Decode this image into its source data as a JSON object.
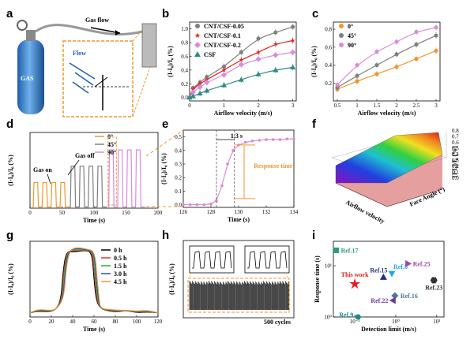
{
  "panel_labels": [
    "a",
    "b",
    "c",
    "d",
    "e",
    "f",
    "g",
    "h",
    "i"
  ],
  "panel_a": {
    "gas_flow": "Gas flow",
    "flow": "Flow",
    "tank": "GAS"
  },
  "chart_data": [
    {
      "id": "b",
      "type": "line",
      "xlabel": "Airflow velocity (m/s)",
      "ylabel": "(I-I₀)/I₀ (%)",
      "xlim": [
        0,
        3.1
      ],
      "ylim": [
        -0.05,
        1.1
      ],
      "xticks": [
        0,
        1,
        2,
        3
      ],
      "yticks": [
        0.0,
        0.2,
        0.4,
        0.6,
        0.8,
        1.0
      ],
      "x": [
        0,
        0.1,
        0.3,
        0.5,
        1.0,
        1.5,
        2.0,
        2.5,
        3.0
      ],
      "series": [
        {
          "name": "CNT/CSF-0.05",
          "color": "#7f7f7f",
          "marker": "circle",
          "values": [
            0,
            0.14,
            0.22,
            0.3,
            0.45,
            0.66,
            0.86,
            0.95,
            1.03
          ]
        },
        {
          "name": "CNT/CSF-0.1",
          "color": "#e02020",
          "marker": "star",
          "values": [
            0,
            0.12,
            0.2,
            0.26,
            0.4,
            0.55,
            0.66,
            0.78,
            0.83
          ]
        },
        {
          "name": "CNT/CSF-0.2",
          "color": "#d98cd9",
          "marker": "diamond",
          "values": [
            0,
            0.08,
            0.15,
            0.22,
            0.33,
            0.48,
            0.56,
            0.62,
            0.66
          ]
        },
        {
          "name": "CSF",
          "color": "#2e8b85",
          "marker": "triangle",
          "values": [
            0,
            0.02,
            0.06,
            0.1,
            0.18,
            0.26,
            0.34,
            0.4,
            0.44
          ]
        }
      ]
    },
    {
      "id": "c",
      "type": "line",
      "xlabel": "Airflow velocity (m/s)",
      "ylabel": "(I-I₀)/I₀ (%)",
      "xlim": [
        0.4,
        3.1
      ],
      "ylim": [
        0.0,
        0.88
      ],
      "xticks": [
        0.5,
        1.0,
        1.5,
        2.0,
        2.5,
        3.0
      ],
      "yticks": [
        0.2,
        0.4,
        0.6,
        0.8
      ],
      "x": [
        0.5,
        1.0,
        1.5,
        2.0,
        2.5,
        3.0
      ],
      "series": [
        {
          "name": "0°",
          "color": "#f0962e",
          "marker": "circle",
          "values": [
            0.13,
            0.22,
            0.3,
            0.38,
            0.47,
            0.56
          ]
        },
        {
          "name": "45°",
          "color": "#7f7f7f",
          "marker": "circle",
          "values": [
            0.15,
            0.28,
            0.4,
            0.52,
            0.63,
            0.73
          ]
        },
        {
          "name": "90°",
          "color": "#d98cd9",
          "marker": "circle",
          "values": [
            0.18,
            0.4,
            0.55,
            0.66,
            0.77,
            0.82
          ]
        }
      ]
    },
    {
      "id": "d",
      "type": "line",
      "xlabel": "Time (s)",
      "ylabel": "(I-I₀)/I₀ (%)",
      "xlim": [
        0,
        200
      ],
      "ylim": [
        0,
        0.65
      ],
      "xticks": [
        0,
        50,
        100,
        150,
        200
      ],
      "yticks": [],
      "series": [
        {
          "name": "0°",
          "color": "#f0962e",
          "start": 4,
          "amplitude": 0.22
        },
        {
          "name": "45°",
          "color": "#7f7f7f",
          "start": 62,
          "amplitude": 0.36
        },
        {
          "name": "90°",
          "color": "#d98cd9",
          "start": 122,
          "amplitude": 0.5
        }
      ],
      "annotations": {
        "gas_on": "Gas on",
        "gas_off": "Gas off"
      }
    },
    {
      "id": "e",
      "type": "line",
      "xlabel": "Time (s)",
      "ylabel": "(I-I₀)/I₀ (%)",
      "xlim": [
        126,
        134
      ],
      "ylim": [
        -0.02,
        0.55
      ],
      "xticks": [
        126,
        128,
        130,
        132,
        134
      ],
      "yticks": [
        0.0,
        0.1,
        0.2,
        0.3,
        0.4,
        0.5
      ],
      "x": [
        126,
        126.5,
        127,
        127.5,
        128,
        128.4,
        128.8,
        129.2,
        129.6,
        130,
        130.5,
        131,
        131.5,
        132,
        132.5,
        133,
        133.5,
        134
      ],
      "values": [
        0,
        0,
        0,
        0,
        0.005,
        0.03,
        0.14,
        0.3,
        0.4,
        0.44,
        0.46,
        0.47,
        0.475,
        0.48,
        0.48,
        0.48,
        0.485,
        0.485
      ],
      "color": "#d98cd9",
      "annotations": {
        "interval": "1.3 s",
        "response_time": "Response time"
      }
    },
    {
      "id": "f",
      "type": "heatmap",
      "xlabel": "Airflow velocity",
      "ylabel": "Face Angle (°)",
      "zlabel": "(I-I₀)/I₀ (%)",
      "zticks": [
        0.0,
        0.1,
        0.2,
        0.3,
        0.4,
        0.5,
        0.6,
        0.7,
        0.8
      ]
    },
    {
      "id": "g",
      "type": "line",
      "xlabel": "Time (s)",
      "ylabel": "(I-I₀)/I₀ (%)",
      "xlim": [
        0,
        120
      ],
      "ylim": [
        0,
        0.9
      ],
      "xticks": [
        0,
        20,
        40,
        60,
        80,
        100,
        120
      ],
      "yticks": [],
      "series": [
        {
          "name": "0 h",
          "color": "#000000"
        },
        {
          "name": "0.5 h",
          "color": "#e0342a"
        },
        {
          "name": "1.5 h",
          "color": "#2ab02a"
        },
        {
          "name": "3.0 h",
          "color": "#2a4ad0"
        },
        {
          "name": "4.5 h",
          "color": "#f0962e"
        }
      ]
    },
    {
      "id": "h",
      "type": "line",
      "ylabel": "(I-I₀)/I₀ (%)",
      "cycles_label": "500 cycles"
    },
    {
      "id": "i",
      "type": "scatter",
      "xlabel": "Detection limit (m/s)",
      "ylabel": "Response time (s)",
      "xscale": "log",
      "yscale": "log",
      "xlim": [
        0.03,
        15
      ],
      "ylim": [
        1,
        30
      ],
      "xticks": [
        "10⁻¹",
        "10⁰",
        "10¹"
      ],
      "yticks": [
        "10⁰",
        "10¹"
      ],
      "points": [
        {
          "label": "Ref.17",
          "x": 0.035,
          "y": 20,
          "color": "#2e9a78",
          "marker": "square"
        },
        {
          "label": "This work",
          "x": 0.1,
          "y": 4.4,
          "color": "#e02020",
          "marker": "star"
        },
        {
          "label": "Ref.15",
          "x": 0.5,
          "y": 6.0,
          "color": "#2a2a8a",
          "marker": "triangle"
        },
        {
          "label": "Ref.8",
          "x": 0.8,
          "y": 7.0,
          "color": "#29a8e0",
          "marker": "triangle-down"
        },
        {
          "label": "Ref.25",
          "x": 2.0,
          "y": 11.0,
          "color": "#9a4ab0",
          "marker": "triangle-right"
        },
        {
          "label": "Ref.23",
          "x": 8.5,
          "y": 5.2,
          "color": "#333333",
          "marker": "hexagon"
        },
        {
          "label": "Ref.16",
          "x": 0.95,
          "y": 2.6,
          "color": "#4a7a9a",
          "marker": "diamond"
        },
        {
          "label": "Ref.22",
          "x": 0.85,
          "y": 2.1,
          "color": "#6a3a9a",
          "marker": "triangle-left"
        },
        {
          "label": "Ref.9",
          "x": 0.12,
          "y": 1.0,
          "color": "#1a8a8a",
          "marker": "circle"
        }
      ]
    }
  ]
}
